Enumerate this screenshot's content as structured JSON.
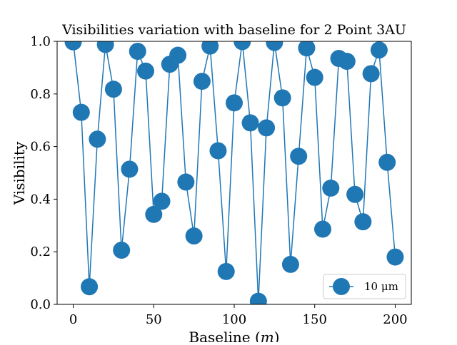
{
  "chart_data": {
    "type": "line",
    "title": "Visibilities variation with baseline for 2 Point 3AU",
    "xlabel": "Baseline (m)",
    "ylabel": "Visibility",
    "xlim": [
      -10,
      210
    ],
    "ylim": [
      0.0,
      1.0
    ],
    "xticks": [
      0,
      50,
      100,
      150,
      200
    ],
    "xtick_labels": [
      "0",
      "50",
      "100",
      "150",
      "200"
    ],
    "yticks": [
      0.0,
      0.2,
      0.4,
      0.6,
      0.8,
      1.0
    ],
    "ytick_labels": [
      "0.0",
      "0.2",
      "0.4",
      "0.6",
      "0.8",
      "1.0"
    ],
    "grid": false,
    "legend_position": "lower-right",
    "series": [
      {
        "name": "10 μm",
        "color": "#1f77b4",
        "marker": "circle",
        "x": [
          0,
          5,
          10,
          15,
          20,
          25,
          30,
          35,
          40,
          45,
          50,
          55,
          60,
          65,
          70,
          75,
          80,
          85,
          90,
          95,
          100,
          105,
          110,
          115,
          120,
          125,
          130,
          135,
          140,
          145,
          150,
          155,
          160,
          165,
          170,
          175,
          180,
          185,
          190,
          195,
          200
        ],
        "y": [
          0.998,
          0.73,
          0.067,
          0.628,
          0.988,
          0.818,
          0.206,
          0.514,
          0.962,
          0.887,
          0.342,
          0.392,
          0.913,
          0.947,
          0.465,
          0.26,
          0.848,
          0.982,
          0.584,
          0.125,
          0.766,
          0.999,
          0.69,
          0.012,
          0.671,
          0.996,
          0.785,
          0.152,
          0.563,
          0.975,
          0.863,
          0.286,
          0.442,
          0.935,
          0.924,
          0.418,
          0.314,
          0.877,
          0.967,
          0.54,
          0.18
        ]
      }
    ]
  }
}
